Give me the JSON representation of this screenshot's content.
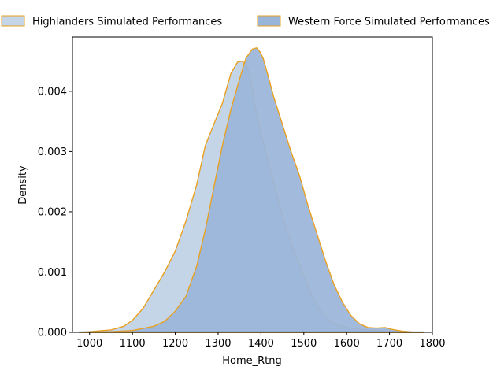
{
  "chart_data": {
    "type": "area",
    "title": "",
    "xlabel": "Home_Rtng",
    "ylabel": "Density",
    "xlim": [
      960,
      1800
    ],
    "ylim": [
      0,
      0.0049
    ],
    "x_ticks": [
      1000,
      1100,
      1200,
      1300,
      1400,
      1500,
      1600,
      1700,
      1800
    ],
    "y_ticks": [
      0.0,
      0.001,
      0.002,
      0.003,
      0.004
    ],
    "y_tick_labels": [
      "0.000",
      "0.001",
      "0.002",
      "0.003",
      "0.004"
    ],
    "grid": false,
    "legend_position": "top, outside plot, two columns",
    "series": [
      {
        "name": "Highlanders Simulated Performances",
        "fill": "#c5d5e8",
        "edge": "#e8a020",
        "x": [
          975,
          1000,
          1050,
          1080,
          1100,
          1125,
          1150,
          1175,
          1200,
          1225,
          1250,
          1270,
          1290,
          1310,
          1330,
          1345,
          1355,
          1365,
          1375,
          1385,
          1400,
          1420,
          1440,
          1460,
          1480,
          1500,
          1520,
          1540,
          1560,
          1580,
          1600,
          1620,
          1650,
          1680,
          1700,
          1730,
          1760,
          1780
        ],
        "y": [
          0.0,
          1e-05,
          4e-05,
          0.0001,
          0.0002,
          0.0004,
          0.0007,
          0.001,
          0.00135,
          0.00185,
          0.00245,
          0.0031,
          0.00345,
          0.0038,
          0.0043,
          0.00448,
          0.0045,
          0.00445,
          0.00425,
          0.0038,
          0.0033,
          0.00275,
          0.0022,
          0.0017,
          0.0013,
          0.00095,
          0.0006,
          0.00035,
          0.0002,
          0.00012,
          8e-05,
          6e-05,
          4e-05,
          3e-05,
          2e-05,
          1e-05,
          0.0,
          0.0
        ]
      },
      {
        "name": "Western Force Simulated Performances",
        "fill": "#9ab5da",
        "edge": "#e8a020",
        "x": [
          975,
          1000,
          1050,
          1100,
          1150,
          1175,
          1200,
          1225,
          1250,
          1270,
          1290,
          1310,
          1330,
          1350,
          1365,
          1380,
          1390,
          1398,
          1405,
          1415,
          1430,
          1450,
          1470,
          1490,
          1510,
          1530,
          1550,
          1570,
          1590,
          1610,
          1630,
          1650,
          1670,
          1690,
          1705,
          1730,
          1760,
          1780
        ],
        "y": [
          0.0,
          0.0,
          1e-05,
          3e-05,
          0.0001,
          0.00018,
          0.00035,
          0.0006,
          0.0011,
          0.0017,
          0.0024,
          0.0031,
          0.0037,
          0.0042,
          0.00455,
          0.0047,
          0.00472,
          0.00465,
          0.00455,
          0.0043,
          0.0039,
          0.00345,
          0.003,
          0.0026,
          0.0021,
          0.00165,
          0.0012,
          0.0008,
          0.0005,
          0.00028,
          0.00014,
          8e-05,
          7e-05,
          8e-05,
          5e-05,
          2e-05,
          0.0,
          0.0
        ]
      }
    ]
  }
}
